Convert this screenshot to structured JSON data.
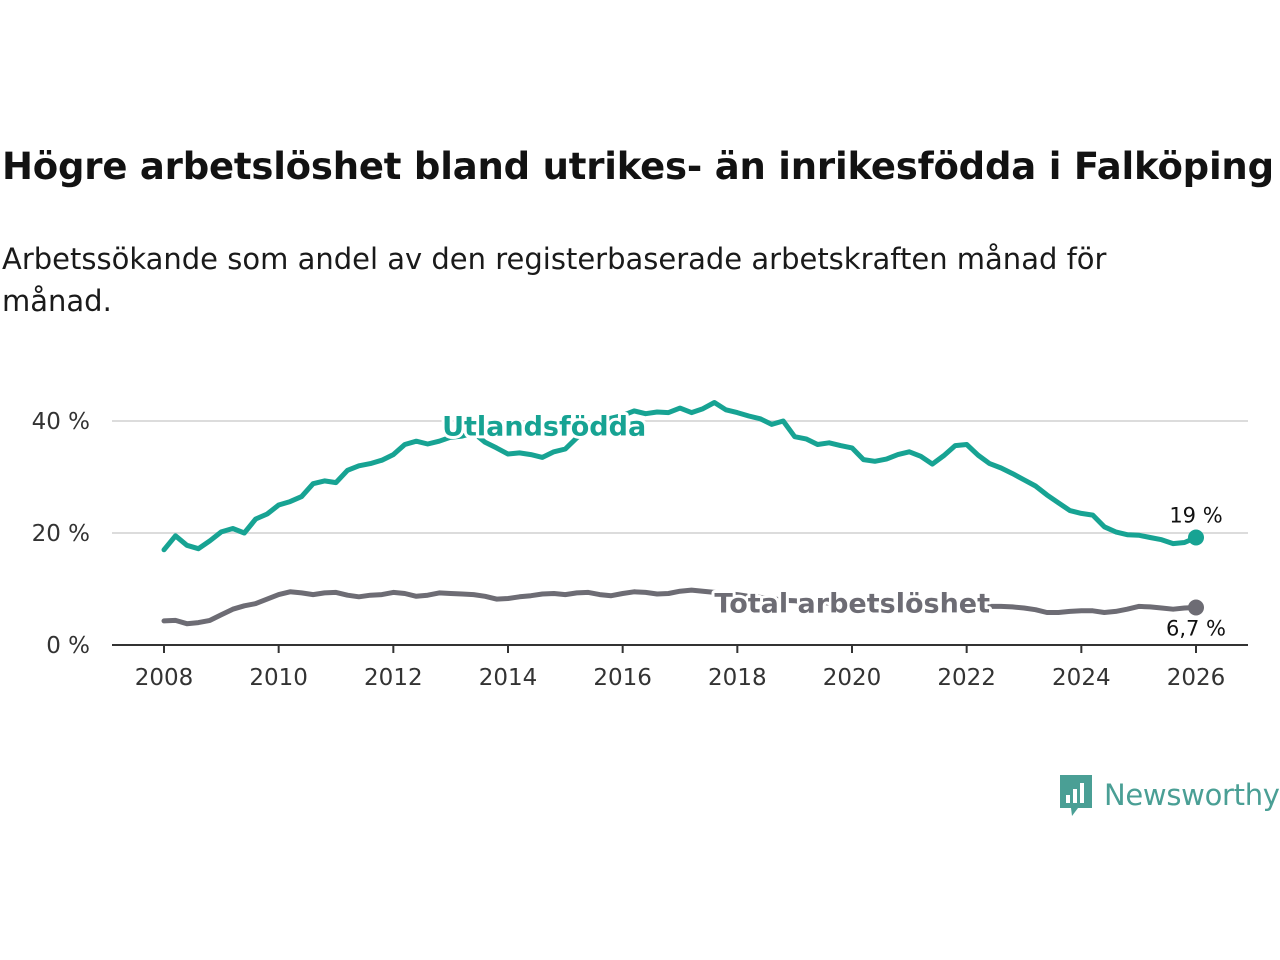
{
  "title": "Högre arbetslöshet bland utrikes- än inrikesfödda i Falköping",
  "subtitle": "Arbetssökande som andel av den registerbaserade arbetskraften månad för månad.",
  "brand": "Newsworthy",
  "brand_icon": "newsworthy-bar-chart-bubble-icon",
  "colors": {
    "utrikes": "#17a393",
    "total": "#6d6c74",
    "grid": "#dcdcdc",
    "axis": "#333333",
    "brand": "#4a9f95"
  },
  "chart_data": {
    "type": "line",
    "title": "Högre arbetslöshet bland utrikes- än inrikesfödda i Falköping",
    "xlabel": "",
    "ylabel": "",
    "xlim": [
      2008,
      2026
    ],
    "ylim": [
      0,
      45
    ],
    "grid": true,
    "x_ticks": [
      2008,
      2010,
      2012,
      2014,
      2016,
      2018,
      2020,
      2022,
      2024,
      2026
    ],
    "x_tick_labels": [
      "2008",
      "2010",
      "2012",
      "2014",
      "2016",
      "2018",
      "2020",
      "2022",
      "2024",
      "2026"
    ],
    "y_ticks": [
      0,
      20,
      40
    ],
    "y_tick_labels": [
      "0 %",
      "20 %",
      "40 %"
    ],
    "series": [
      {
        "name": "Utlandsfödda",
        "key": "utrikes",
        "end_label": "19 %",
        "points": [
          [
            2008.0,
            17.0
          ],
          [
            2008.2,
            19.5
          ],
          [
            2008.4,
            17.8
          ],
          [
            2008.6,
            17.2
          ],
          [
            2008.8,
            18.6
          ],
          [
            2009.0,
            20.2
          ],
          [
            2009.2,
            20.8
          ],
          [
            2009.4,
            20.0
          ],
          [
            2009.6,
            22.5
          ],
          [
            2009.8,
            23.4
          ],
          [
            2010.0,
            25.0
          ],
          [
            2010.2,
            25.6
          ],
          [
            2010.4,
            26.5
          ],
          [
            2010.6,
            28.8
          ],
          [
            2010.8,
            29.3
          ],
          [
            2011.0,
            29.0
          ],
          [
            2011.2,
            31.2
          ],
          [
            2011.4,
            32.0
          ],
          [
            2011.6,
            32.4
          ],
          [
            2011.8,
            33.0
          ],
          [
            2012.0,
            34.0
          ],
          [
            2012.2,
            35.8
          ],
          [
            2012.4,
            36.4
          ],
          [
            2012.6,
            35.9
          ],
          [
            2012.8,
            36.4
          ],
          [
            2013.0,
            37.1
          ],
          [
            2013.2,
            37.3
          ],
          [
            2013.4,
            37.9
          ],
          [
            2013.6,
            36.2
          ],
          [
            2013.8,
            35.2
          ],
          [
            2014.0,
            34.1
          ],
          [
            2014.2,
            34.3
          ],
          [
            2014.4,
            34.0
          ],
          [
            2014.6,
            33.5
          ],
          [
            2014.8,
            34.5
          ],
          [
            2015.0,
            35.0
          ],
          [
            2015.2,
            37.0
          ],
          [
            2015.4,
            38.5
          ],
          [
            2015.6,
            40.0
          ],
          [
            2015.8,
            40.5
          ],
          [
            2016.0,
            41.0
          ],
          [
            2016.2,
            41.8
          ],
          [
            2016.4,
            41.3
          ],
          [
            2016.6,
            41.6
          ],
          [
            2016.8,
            41.5
          ],
          [
            2017.0,
            42.3
          ],
          [
            2017.2,
            41.5
          ],
          [
            2017.4,
            42.2
          ],
          [
            2017.6,
            43.3
          ],
          [
            2017.8,
            42.0
          ],
          [
            2018.0,
            41.5
          ],
          [
            2018.2,
            40.9
          ],
          [
            2018.4,
            40.4
          ],
          [
            2018.6,
            39.4
          ],
          [
            2018.8,
            40.0
          ],
          [
            2019.0,
            37.2
          ],
          [
            2019.2,
            36.8
          ],
          [
            2019.4,
            35.8
          ],
          [
            2019.6,
            36.1
          ],
          [
            2019.8,
            35.6
          ],
          [
            2020.0,
            35.2
          ],
          [
            2020.2,
            33.1
          ],
          [
            2020.4,
            32.8
          ],
          [
            2020.6,
            33.2
          ],
          [
            2020.8,
            34.0
          ],
          [
            2021.0,
            34.5
          ],
          [
            2021.2,
            33.7
          ],
          [
            2021.4,
            32.3
          ],
          [
            2021.6,
            33.8
          ],
          [
            2021.8,
            35.6
          ],
          [
            2022.0,
            35.8
          ],
          [
            2022.2,
            33.9
          ],
          [
            2022.4,
            32.4
          ],
          [
            2022.6,
            31.6
          ],
          [
            2022.8,
            30.6
          ],
          [
            2023.0,
            29.5
          ],
          [
            2023.2,
            28.4
          ],
          [
            2023.4,
            26.8
          ],
          [
            2023.6,
            25.4
          ],
          [
            2023.8,
            24.0
          ],
          [
            2024.0,
            23.5
          ],
          [
            2024.2,
            23.2
          ],
          [
            2024.4,
            21.1
          ],
          [
            2024.6,
            20.2
          ],
          [
            2024.8,
            19.7
          ],
          [
            2025.0,
            19.6
          ],
          [
            2025.2,
            19.2
          ],
          [
            2025.4,
            18.8
          ],
          [
            2025.6,
            18.1
          ],
          [
            2025.8,
            18.3
          ],
          [
            2026.0,
            19.2
          ]
        ]
      },
      {
        "name": "Total arbetslöshet",
        "key": "total",
        "end_label": "6,7 %",
        "points": [
          [
            2008.0,
            4.3
          ],
          [
            2008.2,
            4.4
          ],
          [
            2008.4,
            3.8
          ],
          [
            2008.6,
            4.0
          ],
          [
            2008.8,
            4.4
          ],
          [
            2009.0,
            5.4
          ],
          [
            2009.2,
            6.4
          ],
          [
            2009.4,
            7.0
          ],
          [
            2009.6,
            7.4
          ],
          [
            2009.8,
            8.2
          ],
          [
            2010.0,
            9.0
          ],
          [
            2010.2,
            9.5
          ],
          [
            2010.4,
            9.3
          ],
          [
            2010.6,
            9.0
          ],
          [
            2010.8,
            9.3
          ],
          [
            2011.0,
            9.4
          ],
          [
            2011.2,
            8.9
          ],
          [
            2011.4,
            8.6
          ],
          [
            2011.6,
            8.9
          ],
          [
            2011.8,
            9.0
          ],
          [
            2012.0,
            9.4
          ],
          [
            2012.2,
            9.2
          ],
          [
            2012.4,
            8.7
          ],
          [
            2012.6,
            8.9
          ],
          [
            2012.8,
            9.3
          ],
          [
            2013.0,
            9.2
          ],
          [
            2013.2,
            9.1
          ],
          [
            2013.4,
            9.0
          ],
          [
            2013.6,
            8.7
          ],
          [
            2013.8,
            8.2
          ],
          [
            2014.0,
            8.3
          ],
          [
            2014.2,
            8.6
          ],
          [
            2014.4,
            8.8
          ],
          [
            2014.6,
            9.1
          ],
          [
            2014.8,
            9.2
          ],
          [
            2015.0,
            9.0
          ],
          [
            2015.2,
            9.3
          ],
          [
            2015.4,
            9.4
          ],
          [
            2015.6,
            9.0
          ],
          [
            2015.8,
            8.8
          ],
          [
            2016.0,
            9.2
          ],
          [
            2016.2,
            9.5
          ],
          [
            2016.4,
            9.4
          ],
          [
            2016.6,
            9.1
          ],
          [
            2016.8,
            9.2
          ],
          [
            2017.0,
            9.6
          ],
          [
            2017.2,
            9.8
          ],
          [
            2017.4,
            9.6
          ],
          [
            2017.6,
            9.4
          ],
          [
            2017.8,
            9.2
          ],
          [
            2018.0,
            9.0
          ],
          [
            2018.2,
            8.7
          ],
          [
            2018.4,
            8.5
          ],
          [
            2018.6,
            8.3
          ],
          [
            2018.8,
            8.0
          ],
          [
            2019.0,
            7.9
          ],
          [
            2019.2,
            7.7
          ],
          [
            2019.4,
            7.6
          ],
          [
            2019.6,
            7.5
          ],
          [
            2019.8,
            7.4
          ],
          [
            2020.0,
            7.2
          ],
          [
            2020.2,
            7.3
          ],
          [
            2020.4,
            7.6
          ],
          [
            2020.6,
            7.8
          ],
          [
            2020.8,
            8.0
          ],
          [
            2021.0,
            7.9
          ],
          [
            2021.2,
            7.6
          ],
          [
            2021.4,
            7.3
          ],
          [
            2021.6,
            7.3
          ],
          [
            2021.8,
            7.2
          ],
          [
            2022.0,
            7.1
          ],
          [
            2022.2,
            7.0
          ],
          [
            2022.4,
            6.9
          ],
          [
            2022.6,
            6.9
          ],
          [
            2022.8,
            6.8
          ],
          [
            2023.0,
            6.6
          ],
          [
            2023.2,
            6.3
          ],
          [
            2023.4,
            5.8
          ],
          [
            2023.6,
            5.8
          ],
          [
            2023.8,
            6.0
          ],
          [
            2024.0,
            6.1
          ],
          [
            2024.2,
            6.1
          ],
          [
            2024.4,
            5.8
          ],
          [
            2024.6,
            6.0
          ],
          [
            2024.8,
            6.4
          ],
          [
            2025.0,
            6.9
          ],
          [
            2025.2,
            6.8
          ],
          [
            2025.4,
            6.6
          ],
          [
            2025.6,
            6.4
          ],
          [
            2025.8,
            6.6
          ],
          [
            2026.0,
            6.7
          ]
        ]
      }
    ]
  }
}
